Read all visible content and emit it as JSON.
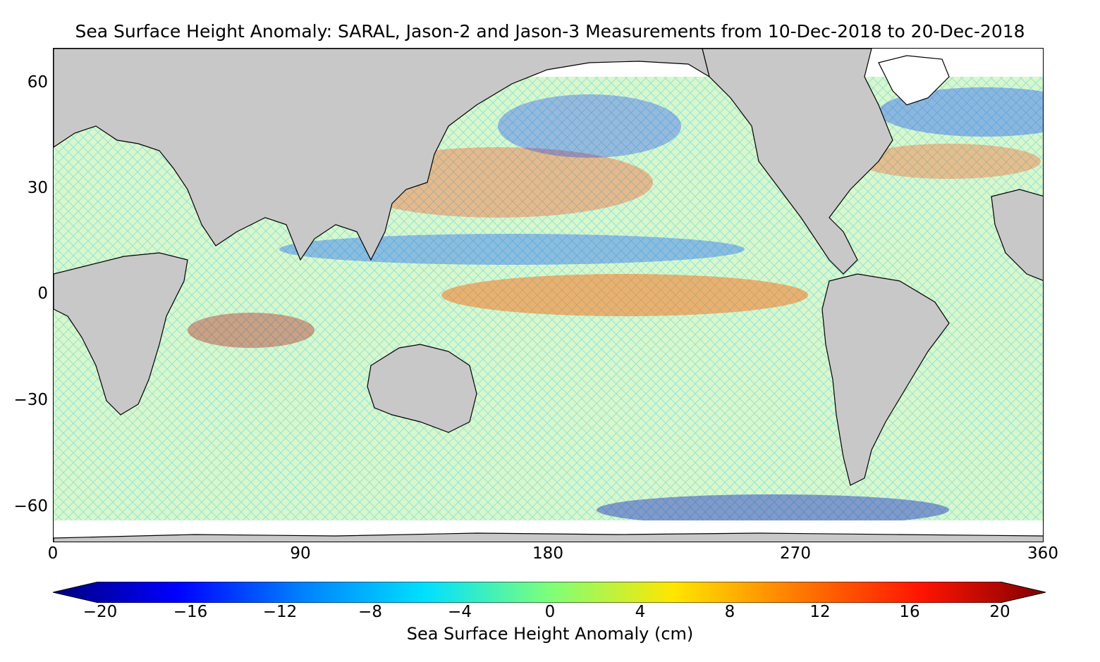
{
  "title": "Sea Surface Height Anomaly: SARAL, Jason-2 and Jason-3 Measurements from 10-Dec-2018 to 20-Dec-2018",
  "map": {
    "land_color": "#c8c8c8",
    "ocean_color": "#ffffff",
    "x_ticks": [
      "0",
      "90",
      "180",
      "270",
      "360"
    ],
    "y_ticks": [
      "60",
      "30",
      "0",
      "−30",
      "−60"
    ]
  },
  "colorbar": {
    "label": "Sea Surface Height Anomaly (cm)",
    "ticks": [
      "−20",
      "−16",
      "−12",
      "−8",
      "−4",
      "0",
      "4",
      "8",
      "12",
      "16",
      "20"
    ],
    "colors": [
      "#00007f",
      "#0000ff",
      "#0080ff",
      "#00e0ff",
      "#7dff7a",
      "#ffe600",
      "#ff7a00",
      "#ff1400",
      "#7f0000"
    ]
  }
}
